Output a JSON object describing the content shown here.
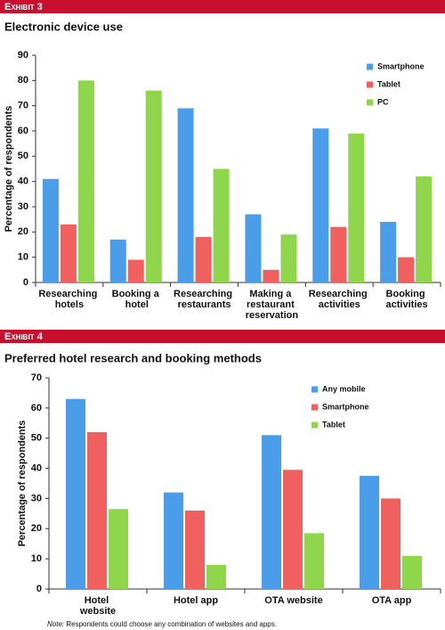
{
  "chart_data": [
    {
      "type": "bar",
      "exhibit": "Exhibit 3",
      "title": "Electronic device use",
      "y_label": "Percentage of respondents",
      "categories": [
        "Researching hotels",
        "Booking a hotel",
        "Researching restaurants",
        "Making a restaurant reservation",
        "Researching activities",
        "Booking activities"
      ],
      "series": [
        {
          "name": "Smartphone",
          "color": "#4a9de8",
          "values": [
            41,
            17,
            69,
            27,
            61,
            24
          ]
        },
        {
          "name": "Tablet",
          "color": "#f0605e",
          "values": [
            23,
            9,
            18,
            5,
            22,
            10
          ]
        },
        {
          "name": "PC",
          "color": "#8fd64c",
          "values": [
            80,
            76,
            45,
            19,
            59,
            42
          ]
        }
      ],
      "ylim": [
        0,
        90
      ],
      "yticks": [
        0,
        10,
        20,
        30,
        40,
        50,
        60,
        70,
        80,
        90
      ],
      "legend": "upper right"
    },
    {
      "type": "bar",
      "exhibit": "Exhibit 4",
      "title": "Preferred hotel research and booking methods",
      "y_label": "Percentage of respondents",
      "categories": [
        "Hotel website",
        "Hotel app",
        "OTA website",
        "OTA app"
      ],
      "series": [
        {
          "name": "Any mobile",
          "color": "#4a9de8",
          "values": [
            63,
            32,
            51,
            37.5
          ]
        },
        {
          "name": "Smartphone",
          "color": "#f0605e",
          "values": [
            52,
            26,
            39.5,
            30
          ]
        },
        {
          "name": "Tablet",
          "color": "#8fd64c",
          "values": [
            26.5,
            8,
            18.5,
            11
          ]
        }
      ],
      "ylim": [
        0,
        70
      ],
      "yticks": [
        0,
        10,
        20,
        30,
        40,
        50,
        60,
        70
      ],
      "legend": "upper right",
      "note_label": "Note:",
      "note": "Respondents could choose any combination of websites and apps."
    }
  ]
}
